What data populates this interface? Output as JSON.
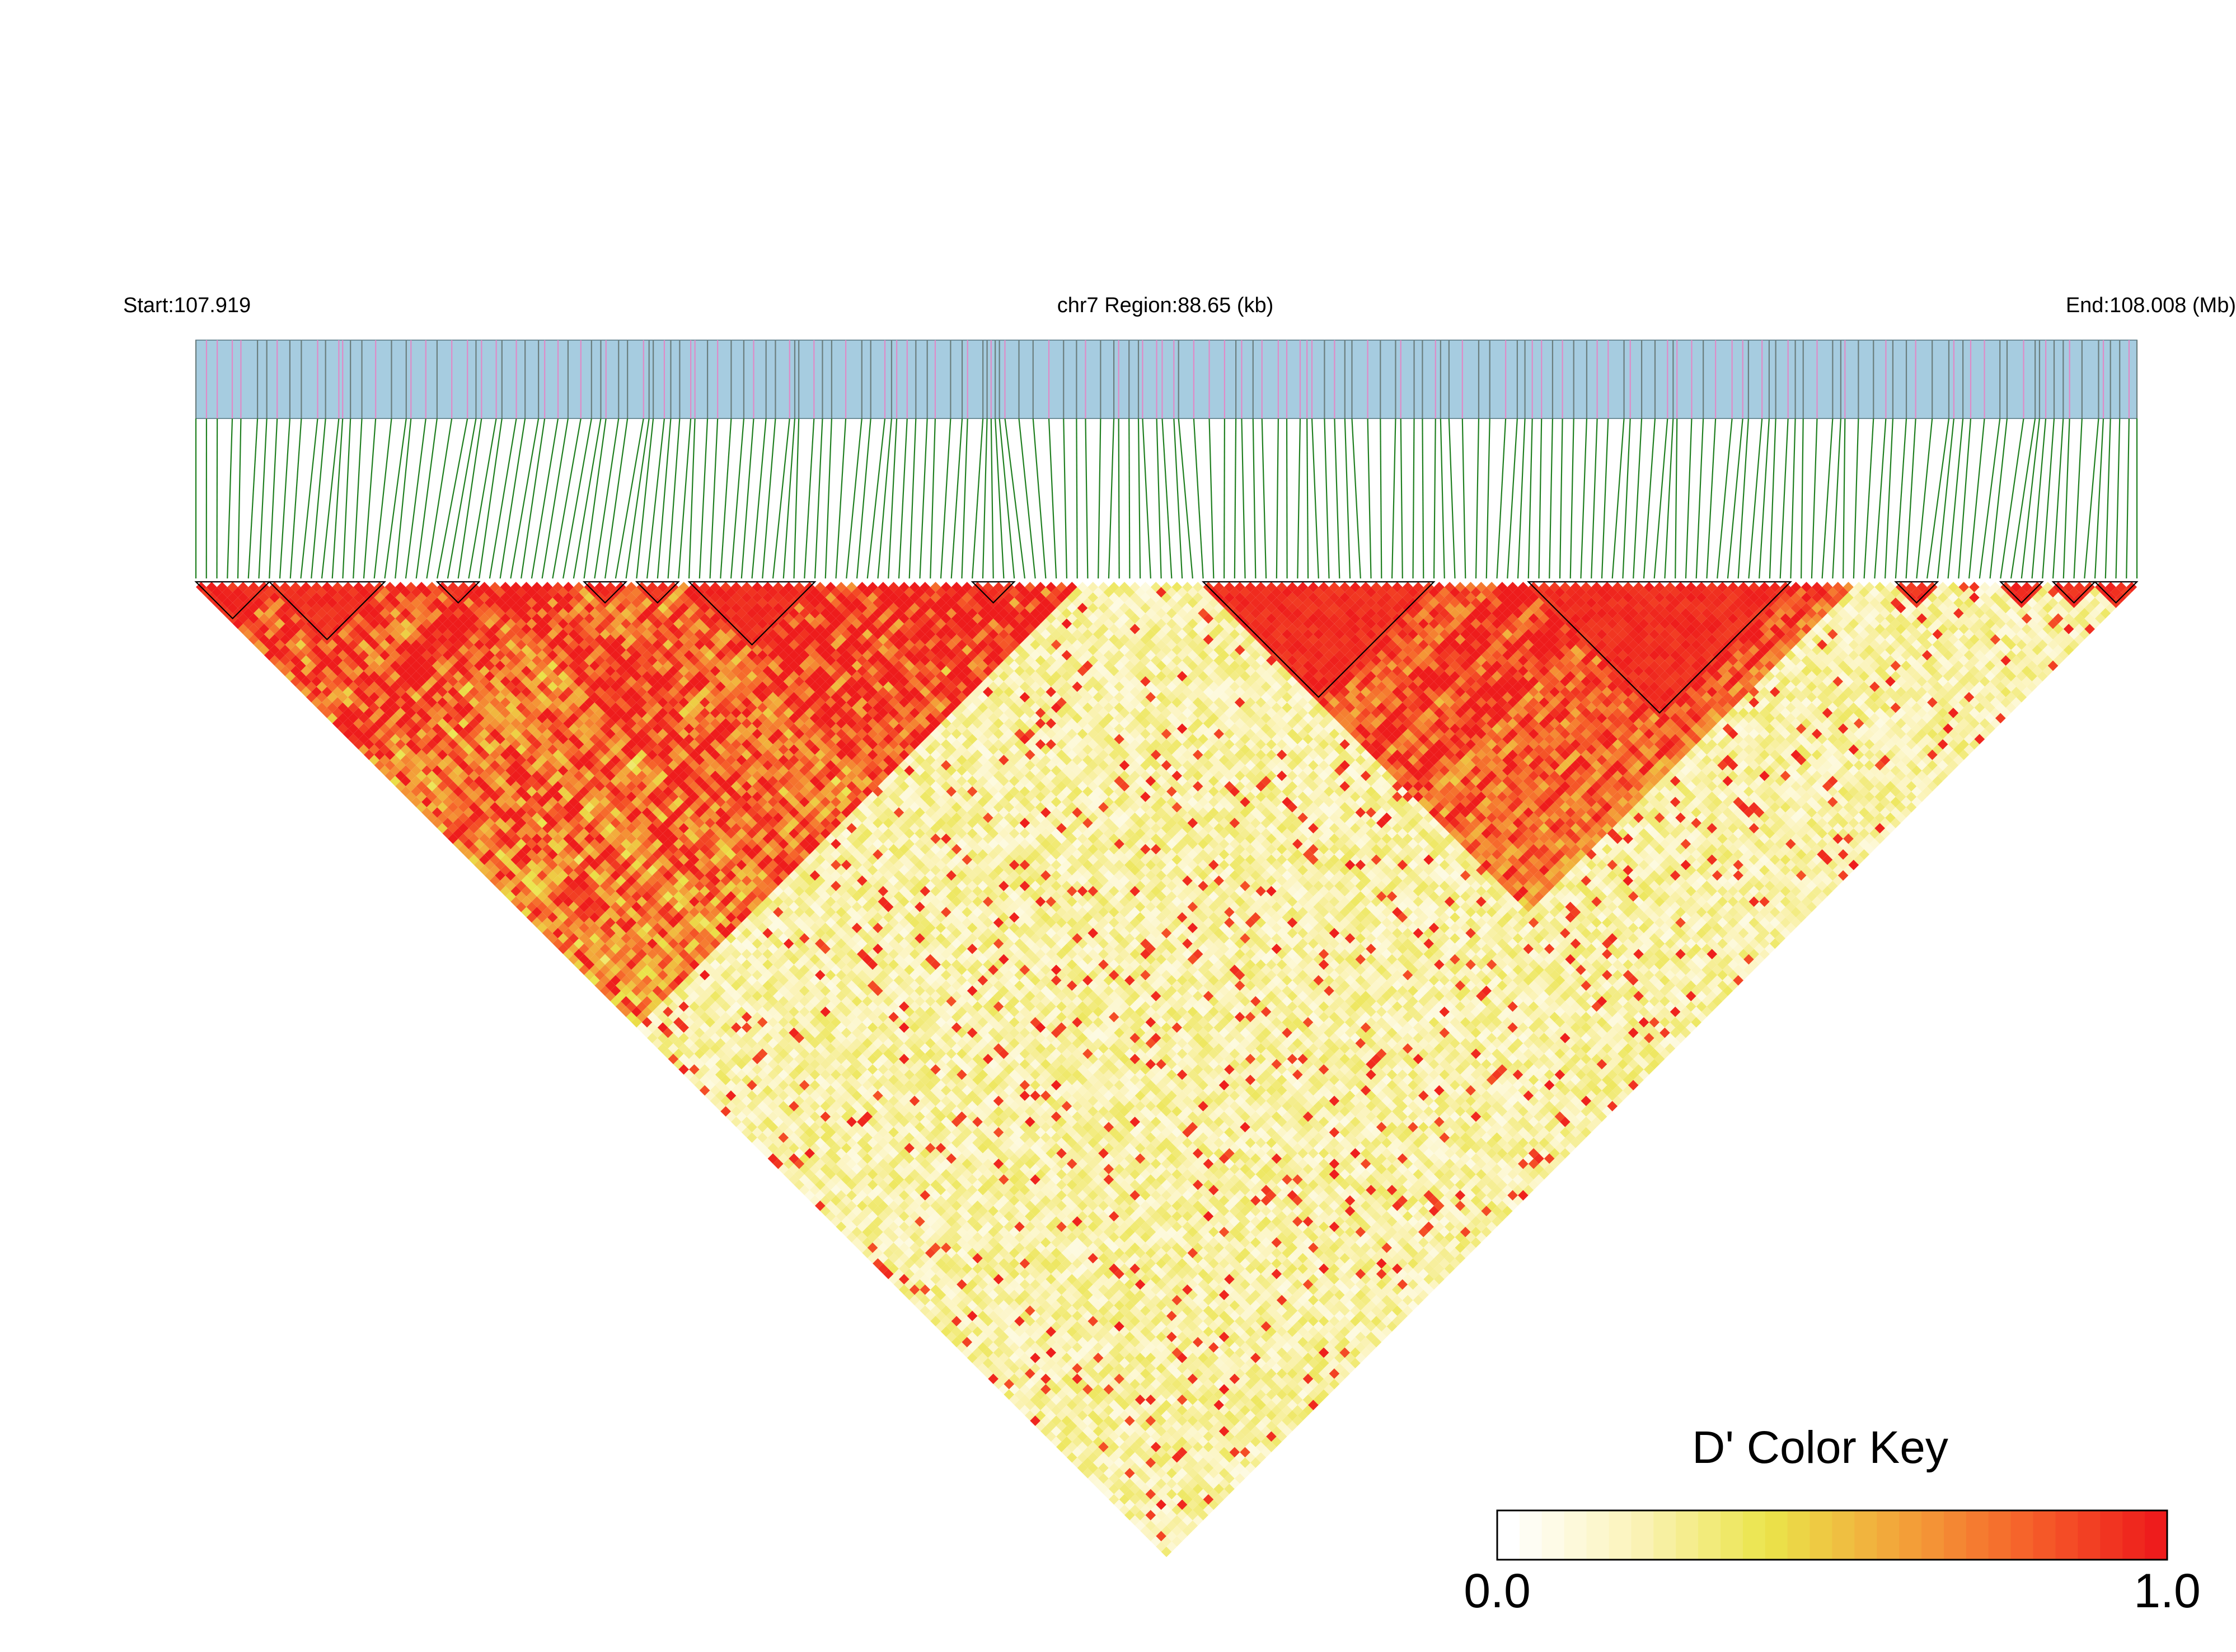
{
  "chart_data": {
    "type": "heatmap",
    "subtype": "ld-triangle",
    "header": {
      "start_label": "Start:107.919",
      "region_label": "chr7 Region:88.65 (kb)",
      "end_label": "End:108.008 (Mb)"
    },
    "region": {
      "chrom": "chr7",
      "start_mb": 107.919,
      "end_mb": 108.008,
      "length_kb": 88.65
    },
    "snp_count": 186,
    "metric": "D'",
    "colors": {
      "track_fill": "#a6cce0",
      "track_border": "#6f8e9a",
      "tick_gray": "#6b7e7e",
      "tick_pink": "#df8bc7",
      "connector": "#1f7f1f",
      "block_outline": "#000000"
    },
    "ld_blocks": [
      {
        "from": 0,
        "to": 7
      },
      {
        "from": 7,
        "to": 18
      },
      {
        "from": 23,
        "to": 27
      },
      {
        "from": 37,
        "to": 41
      },
      {
        "from": 42,
        "to": 46
      },
      {
        "from": 47,
        "to": 59
      },
      {
        "from": 74,
        "to": 78
      },
      {
        "from": 96,
        "to": 118
      },
      {
        "from": 127,
        "to": 152
      },
      {
        "from": 162,
        "to": 166
      },
      {
        "from": 172,
        "to": 176
      },
      {
        "from": 177,
        "to": 181
      },
      {
        "from": 181,
        "to": 185
      }
    ],
    "legend": {
      "title": "D' Color Key",
      "min_label": "0.0",
      "max_label": "1.0",
      "range": [
        0,
        1
      ],
      "stops": [
        "#ffffff",
        "#fbf3b8",
        "#eae44a",
        "#f3a53a",
        "#f6622a",
        "#ee1c1c"
      ]
    }
  }
}
